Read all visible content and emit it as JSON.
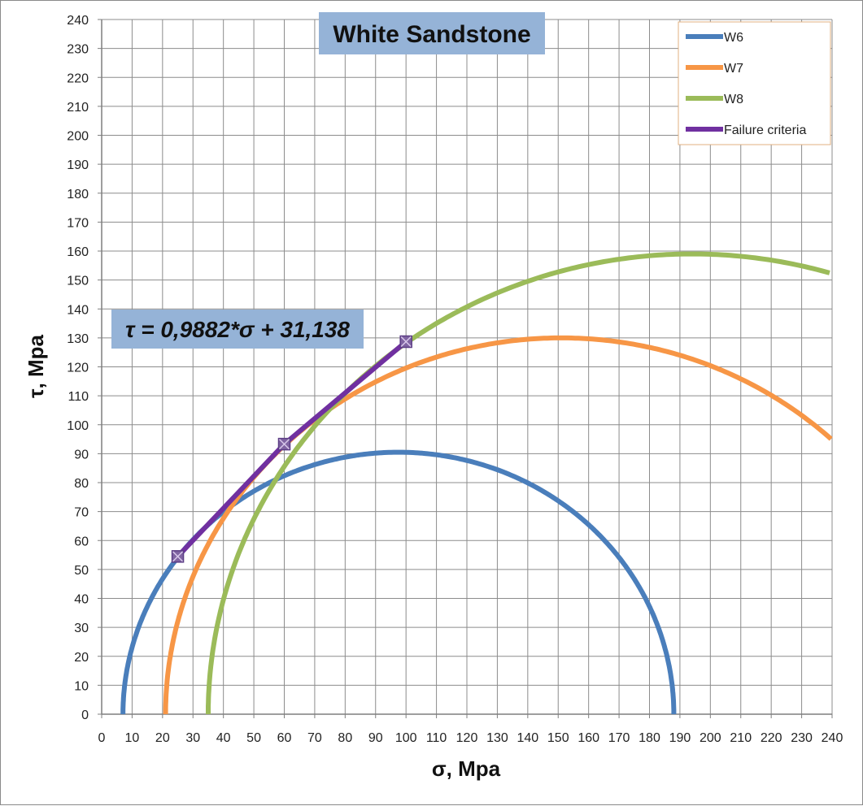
{
  "chart_data": {
    "type": "line",
    "title": "White Sandstone",
    "xlabel": "σ, Mpa",
    "ylabel": "τ, Mpa",
    "xlim": [
      0,
      240
    ],
    "ylim": [
      0,
      240
    ],
    "x_ticks": [
      0,
      10,
      20,
      30,
      40,
      50,
      60,
      70,
      80,
      90,
      100,
      110,
      120,
      130,
      140,
      150,
      160,
      170,
      180,
      190,
      200,
      210,
      220,
      230,
      240
    ],
    "y_ticks": [
      0,
      10,
      20,
      30,
      40,
      50,
      60,
      70,
      80,
      90,
      100,
      110,
      120,
      130,
      140,
      150,
      160,
      170,
      180,
      190,
      200,
      210,
      220,
      230,
      240
    ],
    "grid": true,
    "legend_position": "top-right",
    "annotation": "τ = 0,9882*σ + 31,138",
    "series": [
      {
        "name": "W6",
        "kind": "mohr_circle",
        "sigma3": 7,
        "sigma1": 188,
        "color": "#4a7ebb"
      },
      {
        "name": "W7",
        "kind": "mohr_circle",
        "sigma3": 21,
        "sigma1": 281,
        "color": "#f79646"
      },
      {
        "name": "W8",
        "kind": "mohr_circle",
        "sigma3": 35,
        "sigma1": 353,
        "color": "#9bbb59"
      },
      {
        "name": "Failure criteria",
        "kind": "line",
        "x": [
          25,
          60,
          100
        ],
        "y": [
          54.5,
          93.3,
          128.7
        ],
        "color": "#7030a0"
      }
    ]
  }
}
